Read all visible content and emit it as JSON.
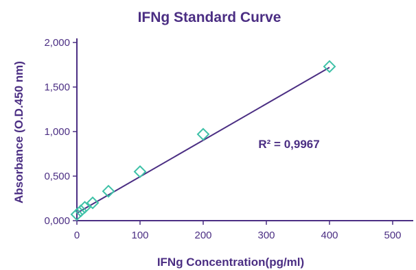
{
  "chart_data": {
    "type": "scatter",
    "title": "IFNg Standard Curve",
    "xlabel": "IFNg Concentration(pg/ml)",
    "ylabel": "Absorbance (O.D.450 nm)",
    "xlim": [
      0,
      500
    ],
    "ylim": [
      0,
      2.0
    ],
    "x_ticks": [
      0,
      100,
      200,
      300,
      400,
      500
    ],
    "x_tick_labels": [
      "0",
      "100",
      "200",
      "300",
      "400",
      "500"
    ],
    "y_ticks": [
      0,
      0.5,
      1.0,
      1.5,
      2.0
    ],
    "y_tick_labels": [
      "0,000",
      "0,500",
      "1,000",
      "1,500",
      "2,000"
    ],
    "grid": false,
    "series": [
      {
        "x": [
          0,
          6.25,
          12.5,
          25,
          50,
          100,
          200,
          400
        ],
        "y": [
          0.07,
          0.11,
          0.15,
          0.2,
          0.33,
          0.55,
          0.97,
          1.73
        ],
        "marker": "diamond",
        "color": "#3ec1a7"
      }
    ],
    "trendline": {
      "x": [
        0,
        400
      ],
      "y": [
        0.085,
        1.72
      ],
      "color": "#4b2e83"
    },
    "annotations": [
      {
        "text": "R² = 0,9967",
        "x": 320,
        "y": 0.86
      }
    ],
    "axis_color": "#4b2e83",
    "text_color": "#4b2e83"
  }
}
